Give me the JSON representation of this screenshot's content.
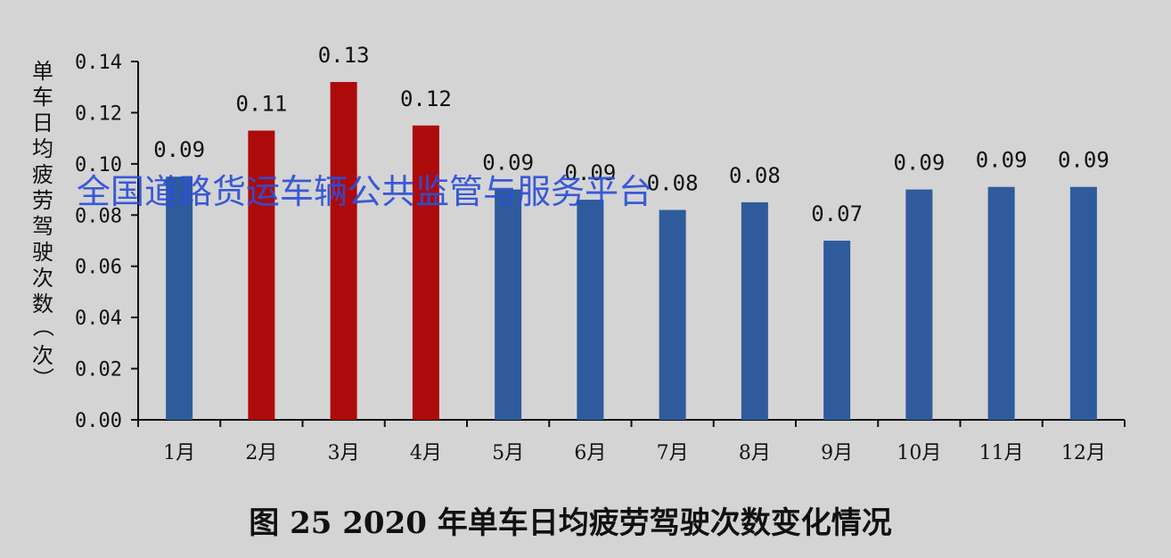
{
  "chart_data": {
    "type": "bar",
    "title": "图 25 2020 年单车日均疲劳驾驶次数变化情况",
    "ylabel": "单车日均疲劳驾驶次数（次）",
    "xlabel": "",
    "categories": [
      "1月",
      "2月",
      "3月",
      "4月",
      "5月",
      "6月",
      "7月",
      "8月",
      "9月",
      "10月",
      "11月",
      "12月"
    ],
    "values": [
      0.095,
      0.113,
      0.132,
      0.115,
      0.09,
      0.086,
      0.082,
      0.085,
      0.07,
      0.09,
      0.091,
      0.091
    ],
    "data_labels": [
      "0.09",
      "0.11",
      "0.13",
      "0.12",
      "0.09",
      "0.09",
      "0.08",
      "0.08",
      "0.07",
      "0.09",
      "0.09",
      "0.09"
    ],
    "bar_colors": [
      "#2f5b9c",
      "#ad0b0b",
      "#ad0b0b",
      "#ad0b0b",
      "#2f5b9c",
      "#2f5b9c",
      "#2f5b9c",
      "#2f5b9c",
      "#2f5b9c",
      "#2f5b9c",
      "#2f5b9c",
      "#2f5b9c"
    ],
    "ylim": [
      0,
      0.14
    ],
    "yticks": [
      "0.00",
      "0.02",
      "0.04",
      "0.06",
      "0.08",
      "0.10",
      "0.12",
      "0.14"
    ],
    "grid": false,
    "legend": "none"
  },
  "watermark": "全国道路货运车辆公共监管与服务平台",
  "colors": {
    "blue_bar": "#2f5b9c",
    "red_bar": "#ad0b0b",
    "background": "#d4d4d4",
    "axis": "#111111"
  }
}
